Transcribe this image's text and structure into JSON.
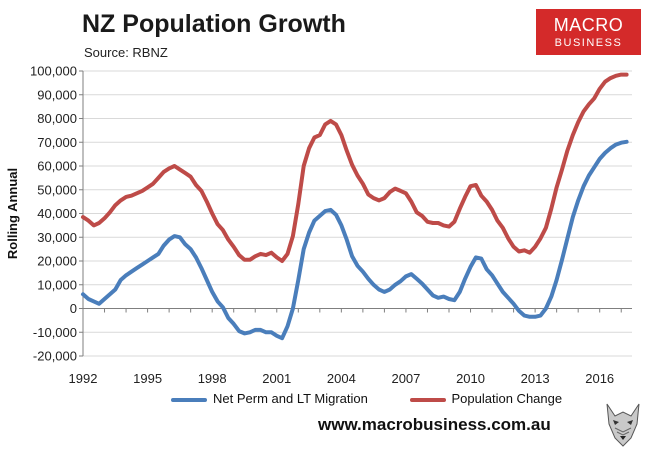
{
  "title": "NZ Population Growth",
  "source": "Source: RBNZ",
  "logo": {
    "line1": "MACRO",
    "line2": "BUSINESS"
  },
  "footer": "www.macrobusiness.com.au",
  "colors": {
    "migration": "#4a7ebb",
    "population": "#be4b48",
    "logo_bg": "#d42a2a"
  },
  "chart_data": {
    "type": "line",
    "ylabel": "Rolling Annual",
    "xlabel": "",
    "ylim": [
      -20000,
      100000
    ],
    "yticks": [
      -20000,
      -10000,
      0,
      10000,
      20000,
      30000,
      40000,
      50000,
      60000,
      70000,
      80000,
      90000,
      100000
    ],
    "ytick_labels": [
      "-20,000",
      "-10,000",
      "0",
      "10,000",
      "20,000",
      "30,000",
      "40,000",
      "50,000",
      "60,000",
      "70,000",
      "80,000",
      "90,000",
      "100,000"
    ],
    "xlim": [
      1992,
      2017.5
    ],
    "xticks": [
      1992,
      1995,
      1998,
      2001,
      2004,
      2007,
      2010,
      2013,
      2016
    ],
    "xtick_labels": [
      "1992",
      "1995",
      "1998",
      "2001",
      "2004",
      "2007",
      "2010",
      "2013",
      "2016"
    ],
    "grid": "horizontal",
    "legend": "bottom",
    "series": [
      {
        "name": "Net Perm and LT Migration",
        "color": "#4a7ebb",
        "x": [
          1992,
          1992.25,
          1992.5,
          1992.75,
          1993,
          1993.25,
          1993.5,
          1993.75,
          1994,
          1994.25,
          1994.5,
          1994.75,
          1995,
          1995.25,
          1995.5,
          1995.75,
          1996,
          1996.25,
          1996.5,
          1996.75,
          1997,
          1997.25,
          1997.5,
          1997.75,
          1998,
          1998.25,
          1998.5,
          1998.75,
          1999,
          1999.25,
          1999.5,
          1999.75,
          2000,
          2000.25,
          2000.5,
          2000.75,
          2001,
          2001.25,
          2001.5,
          2001.75,
          2002,
          2002.25,
          2002.5,
          2002.75,
          2003,
          2003.25,
          2003.5,
          2003.75,
          2004,
          2004.25,
          2004.5,
          2004.75,
          2005,
          2005.25,
          2005.5,
          2005.75,
          2006,
          2006.25,
          2006.5,
          2006.75,
          2007,
          2007.25,
          2007.5,
          2007.75,
          2008,
          2008.25,
          2008.5,
          2008.75,
          2009,
          2009.25,
          2009.5,
          2009.75,
          2010,
          2010.25,
          2010.5,
          2010.75,
          2011,
          2011.25,
          2011.5,
          2011.75,
          2012,
          2012.25,
          2012.5,
          2012.75,
          2013,
          2013.25,
          2013.5,
          2013.75,
          2014,
          2014.25,
          2014.5,
          2014.75,
          2015,
          2015.25,
          2015.5,
          2015.75,
          2016,
          2016.25,
          2016.5,
          2016.75,
          2017,
          2017.25
        ],
        "values": [
          6000,
          4000,
          3000,
          2000,
          4000,
          6000,
          8000,
          12000,
          14000,
          15500,
          17000,
          18500,
          20000,
          21500,
          23000,
          26500,
          29000,
          30500,
          30000,
          27000,
          25000,
          21500,
          17000,
          12000,
          7000,
          3000,
          500,
          -4000,
          -6500,
          -9500,
          -10500,
          -10000,
          -9000,
          -9000,
          -10000,
          -10000,
          -11500,
          -12500,
          -7500,
          0,
          12000,
          25000,
          32000,
          37000,
          39000,
          41000,
          41500,
          39500,
          35000,
          29000,
          22000,
          18000,
          15500,
          12500,
          10000,
          8000,
          7000,
          8000,
          10000,
          11500,
          13500,
          14500,
          12500,
          10500,
          8000,
          5500,
          4500,
          5000,
          4000,
          3500,
          7000,
          12500,
          17500,
          21500,
          21000,
          16500,
          14000,
          10500,
          7000,
          4500,
          2000,
          -1000,
          -3000,
          -3500,
          -3500,
          -3000,
          0,
          5000,
          12000,
          20500,
          29500,
          38500,
          45500,
          51500,
          56000,
          59500,
          63000,
          65500,
          67500,
          69000,
          69800,
          70200
        ]
      },
      {
        "name": "Population Change",
        "color": "#be4b48",
        "x": [
          1992,
          1992.25,
          1992.5,
          1992.75,
          1993,
          1993.25,
          1993.5,
          1993.75,
          1994,
          1994.25,
          1994.5,
          1994.75,
          1995,
          1995.25,
          1995.5,
          1995.75,
          1996,
          1996.25,
          1996.5,
          1996.75,
          1997,
          1997.25,
          1997.5,
          1997.75,
          1998,
          1998.25,
          1998.5,
          1998.75,
          1999,
          1999.25,
          1999.5,
          1999.75,
          2000,
          2000.25,
          2000.5,
          2000.75,
          2001,
          2001.25,
          2001.5,
          2001.75,
          2002,
          2002.25,
          2002.5,
          2002.75,
          2003,
          2003.25,
          2003.5,
          2003.75,
          2004,
          2004.25,
          2004.5,
          2004.75,
          2005,
          2005.25,
          2005.5,
          2005.75,
          2006,
          2006.25,
          2006.5,
          2006.75,
          2007,
          2007.25,
          2007.5,
          2007.75,
          2008,
          2008.25,
          2008.5,
          2008.75,
          2009,
          2009.25,
          2009.5,
          2009.75,
          2010,
          2010.25,
          2010.5,
          2010.75,
          2011,
          2011.25,
          2011.5,
          2011.75,
          2012,
          2012.25,
          2012.5,
          2012.75,
          2013,
          2013.25,
          2013.5,
          2013.75,
          2014,
          2014.25,
          2014.5,
          2014.75,
          2015,
          2015.25,
          2015.5,
          2015.75,
          2016,
          2016.25,
          2016.5,
          2016.75,
          2017,
          2017.25
        ],
        "values": [
          38500,
          37000,
          35000,
          36000,
          38000,
          40500,
          43500,
          45500,
          47000,
          47500,
          48500,
          49500,
          51000,
          52500,
          55000,
          57500,
          59000,
          60000,
          58500,
          57000,
          55500,
          52000,
          49500,
          45000,
          40000,
          35500,
          33000,
          29000,
          26000,
          22500,
          20500,
          20500,
          22000,
          23000,
          22500,
          23500,
          21500,
          20000,
          23000,
          30500,
          44000,
          60000,
          67500,
          72000,
          73000,
          77500,
          79000,
          77500,
          73000,
          66500,
          60500,
          56000,
          52500,
          48000,
          46500,
          45500,
          46500,
          49000,
          50500,
          49500,
          48500,
          45000,
          40500,
          39000,
          36500,
          36000,
          36000,
          35000,
          34500,
          36500,
          42000,
          47000,
          51500,
          52000,
          47500,
          45000,
          41500,
          37000,
          34000,
          29500,
          26000,
          24000,
          24500,
          23500,
          26000,
          29500,
          34000,
          42000,
          51000,
          58500,
          66500,
          73000,
          78500,
          83000,
          86000,
          88500,
          92500,
          95500,
          97000,
          98000,
          98500,
          98500
        ]
      }
    ]
  }
}
